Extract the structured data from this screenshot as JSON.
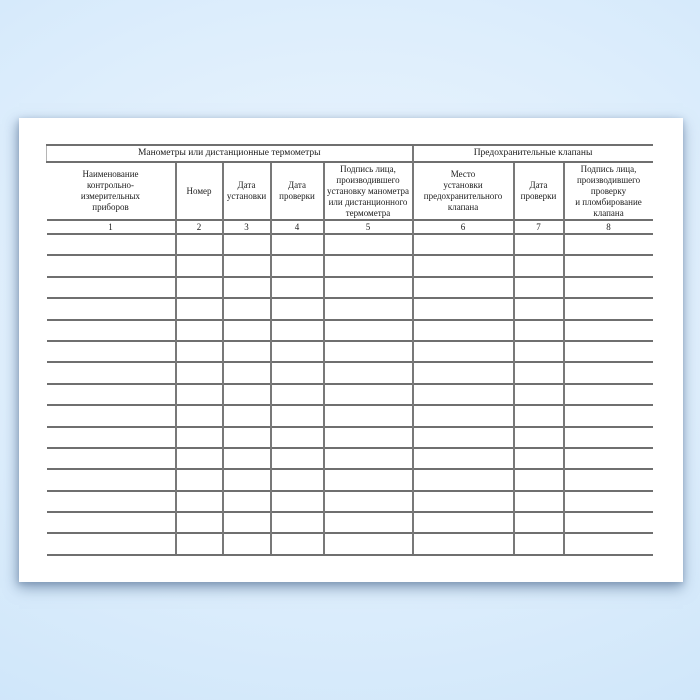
{
  "document": {
    "kind": "registration-log-form",
    "table": {
      "group_headers": [
        {
          "label": "Манометры или дистанционные термометры",
          "colspan": 5
        },
        {
          "label": "Предохранительные клапаны",
          "colspan": 3
        }
      ],
      "columns": [
        {
          "num": "1",
          "header": "Наименование\nконтрольно-\nизмерительных\nприборов"
        },
        {
          "num": "2",
          "header": "Номер"
        },
        {
          "num": "3",
          "header": "Дата\nустановки"
        },
        {
          "num": "4",
          "header": "Дата\nпроверки"
        },
        {
          "num": "5",
          "header": "Подпись лица,\nпроизводившего\nустановку манометра\nили дистанционного\nтермометра"
        },
        {
          "num": "6",
          "header": "Место\nустановки\nпредохранительного\nклапана"
        },
        {
          "num": "7",
          "header": "Дата\nпроверки"
        },
        {
          "num": "8",
          "header": "Подпись лица,\nпроизводившего\nпроверку\nи пломбирование\nклапана"
        }
      ],
      "empty_data_rows": 15
    },
    "colors": {
      "background_blue": "#d8ebfb",
      "paper": "#ffffff",
      "grid_line": "#6f6f6f",
      "text": "#1b1b1b"
    }
  }
}
